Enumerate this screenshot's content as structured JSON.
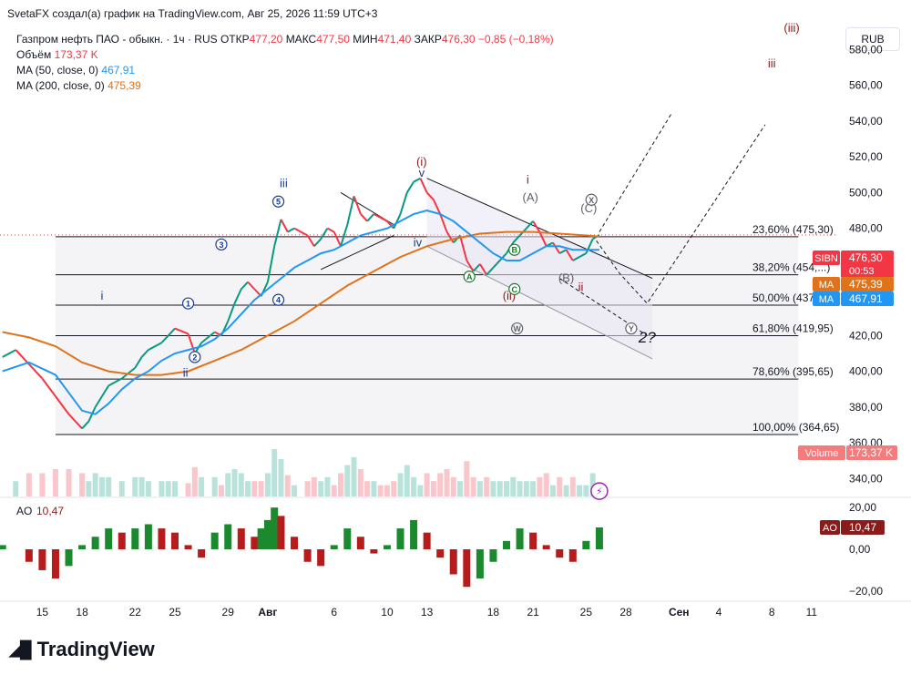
{
  "header": {
    "author_line": "SvetaFX создал(а) график на TradingView.com, Авг 25, 2026 11:59 UTC+3"
  },
  "legend": {
    "symbol_line": "Газпром нефть ПАО - обыкн. · 1ч · RUS",
    "ohlc": [
      {
        "label": "ОТКР",
        "value": "477,20"
      },
      {
        "label": "МАКС",
        "value": "477,50"
      },
      {
        "label": "МИН",
        "value": "471,40"
      },
      {
        "label": "ЗАКР",
        "value": "476,30"
      }
    ],
    "change": "−0,85 (−0,18%)",
    "volume_label": "Объём",
    "volume_value": "173,37 K",
    "ma50_label": "MA (50, close, 0)",
    "ma50_value": "467,91",
    "ma200_label": "MA (200, close, 0)",
    "ma200_value": "475,39"
  },
  "currency_button": "RUB",
  "colors": {
    "up": "#089981",
    "down": "#f23645",
    "ma50": "#2196f3",
    "ma200": "#e0731a",
    "fib": "#131722",
    "wave_dark": "#131722",
    "wave_navy": "#1a3c8f",
    "wave_maroon": "#8b1a1a",
    "wave_green": "#1b7a2c"
  },
  "chart_data": [
    {
      "type": "line",
      "title": "Газпром нефть ПАО - обыкн.",
      "symbol": "SIBN",
      "timeframe": "1ч",
      "exchange": "RUS",
      "currency": "RUB",
      "y_scale": {
        "min": 330,
        "max": 595,
        "ticks": [
          "580,00",
          "560,00",
          "540,00",
          "520,00",
          "500,00",
          "480,00",
          "460,00",
          "440,00",
          "420,00",
          "400,00",
          "380,00",
          "360,00",
          "340,00"
        ],
        "tick_values": [
          580,
          560,
          540,
          520,
          500,
          480,
          460,
          440,
          420,
          400,
          380,
          360,
          340
        ]
      },
      "x_scale": {
        "ticks": [
          "15",
          "18",
          "22",
          "25",
          "29",
          "Авг",
          "6",
          "10",
          "13",
          "18",
          "21",
          "25",
          "28",
          "Сен",
          "4",
          "8",
          "11"
        ],
        "tick_days": [
          -17,
          -14,
          -10,
          -7,
          -3,
          0,
          5,
          9,
          12,
          17,
          20,
          24,
          27,
          31,
          34,
          38,
          41
        ]
      },
      "series": [
        {
          "name": "price",
          "points": [
            [
              -20,
              408
            ],
            [
              -19,
              412
            ],
            [
              -18,
              404
            ],
            [
              -17,
              396
            ],
            [
              -16,
              386
            ],
            [
              -15,
              376
            ],
            [
              -14,
              368
            ],
            [
              -13.5,
              372
            ],
            [
              -13,
              380
            ],
            [
              -12.5,
              386
            ],
            [
              -12,
              392
            ],
            [
              -11,
              396
            ],
            [
              -10,
              402
            ],
            [
              -9.5,
              408
            ],
            [
              -9,
              412
            ],
            [
              -8,
              416
            ],
            [
              -7.5,
              420
            ],
            [
              -7,
              424
            ],
            [
              -6,
              421
            ],
            [
              -5.5,
              410
            ],
            [
              -5,
              416
            ],
            [
              -4,
              422
            ],
            [
              -3.5,
              420
            ],
            [
              -3,
              428
            ],
            [
              -2.5,
              438
            ],
            [
              -2,
              446
            ],
            [
              -1.5,
              450
            ],
            [
              -1,
              446
            ],
            [
              -0.5,
              442
            ],
            [
              0,
              450
            ],
            [
              0.5,
              470
            ],
            [
              1,
              485
            ],
            [
              1.5,
              478
            ],
            [
              2,
              480
            ],
            [
              3,
              476
            ],
            [
              3.5,
              470
            ],
            [
              4,
              474
            ],
            [
              4.5,
              480
            ],
            [
              5,
              478
            ],
            [
              5.5,
              470
            ],
            [
              6,
              482
            ],
            [
              6.5,
              498
            ],
            [
              7,
              488
            ],
            [
              7.5,
              484
            ],
            [
              8,
              488
            ],
            [
              8.5,
              486
            ],
            [
              9,
              484
            ],
            [
              9.5,
              480
            ],
            [
              10,
              488
            ],
            [
              10.5,
              500
            ],
            [
              11,
              506
            ],
            [
              11.5,
              508
            ],
            [
              12,
              500
            ],
            [
              12.5,
              496
            ],
            [
              13,
              488
            ],
            [
              13.5,
              478
            ],
            [
              14,
              472
            ],
            [
              14.5,
              476
            ],
            [
              15,
              462
            ],
            [
              15.5,
              456
            ],
            [
              16,
              460
            ],
            [
              16.5,
              454
            ],
            [
              17,
              458
            ],
            [
              17.5,
              462
            ],
            [
              18,
              466
            ],
            [
              18.5,
              472
            ],
            [
              19,
              476
            ],
            [
              19.5,
              480
            ],
            [
              20,
              484
            ],
            [
              20.5,
              478
            ],
            [
              21,
              470
            ],
            [
              21.5,
              472
            ],
            [
              22,
              466
            ],
            [
              22.5,
              468
            ],
            [
              23,
              462
            ],
            [
              23.5,
              464
            ],
            [
              24,
              466
            ],
            [
              24.5,
              474
            ],
            [
              25,
              476.3
            ]
          ]
        },
        {
          "name": "MA (50, close, 0)",
          "points": [
            [
              -20,
              400
            ],
            [
              -18,
              405
            ],
            [
              -16,
              398
            ],
            [
              -15,
              388
            ],
            [
              -14,
              378
            ],
            [
              -13,
              376
            ],
            [
              -12,
              382
            ],
            [
              -11,
              390
            ],
            [
              -10,
              396
            ],
            [
              -9,
              400
            ],
            [
              -8,
              406
            ],
            [
              -7,
              410
            ],
            [
              -6,
              412
            ],
            [
              -5,
              414
            ],
            [
              -4,
              418
            ],
            [
              -3,
              424
            ],
            [
              -2,
              432
            ],
            [
              -1,
              440
            ],
            [
              0,
              446
            ],
            [
              1,
              452
            ],
            [
              2,
              458
            ],
            [
              3,
              462
            ],
            [
              4,
              466
            ],
            [
              5,
              468
            ],
            [
              6,
              472
            ],
            [
              7,
              476
            ],
            [
              8,
              478
            ],
            [
              9,
              480
            ],
            [
              10,
              484
            ],
            [
              11,
              488
            ],
            [
              12,
              490
            ],
            [
              13,
              488
            ],
            [
              14,
              484
            ],
            [
              15,
              478
            ],
            [
              16,
              472
            ],
            [
              17,
              466
            ],
            [
              18,
              462
            ],
            [
              19,
              462
            ],
            [
              20,
              466
            ],
            [
              21,
              470
            ],
            [
              22,
              470
            ],
            [
              23,
              468
            ],
            [
              24,
              468
            ],
            [
              25,
              468
            ]
          ]
        },
        {
          "name": "MA (200, close, 0)",
          "points": [
            [
              -20,
              422
            ],
            [
              -18,
              419
            ],
            [
              -16,
              414
            ],
            [
              -14,
              405
            ],
            [
              -12,
              400
            ],
            [
              -10,
              398
            ],
            [
              -8,
              398
            ],
            [
              -6,
              400
            ],
            [
              -4,
              406
            ],
            [
              -2,
              412
            ],
            [
              0,
              420
            ],
            [
              2,
              428
            ],
            [
              4,
              438
            ],
            [
              6,
              448
            ],
            [
              8,
              456
            ],
            [
              10,
              464
            ],
            [
              12,
              470
            ],
            [
              14,
              474
            ],
            [
              16,
              477
            ],
            [
              18,
              478
            ],
            [
              20,
              478
            ],
            [
              22,
              477
            ],
            [
              24,
              476
            ],
            [
              25,
              475.4
            ]
          ]
        }
      ],
      "fibonacci": [
        {
          "label": "23,60% (475,30)",
          "price": 475.3
        },
        {
          "label": "38,20% (454,...)",
          "price": 454
        },
        {
          "label": "50,00% (437,05)",
          "price": 437.05
        },
        {
          "label": "61,80% (419,95)",
          "price": 419.95
        },
        {
          "label": "78,60% (395,65)",
          "price": 395.65
        },
        {
          "label": "100,00% (364,65)",
          "price": 364.65
        }
      ],
      "badges": [
        {
          "label": "SIBN",
          "value": "476,30",
          "sub": "00:53",
          "color": "#f23645"
        },
        {
          "label": "MA",
          "value": "475,39",
          "color": "#e0731a"
        },
        {
          "label": "MA",
          "value": "467,91",
          "color": "#2196f3"
        },
        {
          "label": "Volume",
          "value": "173,37 K",
          "color": "#f47c7c"
        }
      ],
      "wave_labels": [
        {
          "text": "(iii)",
          "day": 39.5,
          "price": 590,
          "color": "#8b1a1a"
        },
        {
          "text": "iii",
          "day": 38,
          "price": 570,
          "color": "#8b1a1a"
        },
        {
          "text": "(i)",
          "day": 11.6,
          "price": 515,
          "color": "#8b1a1a"
        },
        {
          "text": "v",
          "day": 11.6,
          "price": 509,
          "color": "#1a3c8f"
        },
        {
          "text": "iii",
          "day": 1.2,
          "price": 503,
          "color": "#1a3c8f"
        },
        {
          "text": "i",
          "day": -12.5,
          "price": 440,
          "color": "#1a3c8f"
        },
        {
          "text": "ii",
          "day": -6.2,
          "price": 397,
          "color": "#1a3c8f"
        },
        {
          "text": "iv",
          "day": 11.3,
          "price": 470,
          "color": "#1a3c8f"
        },
        {
          "text": "i",
          "day": 19.6,
          "price": 505,
          "color": "#8b1a1a"
        },
        {
          "text": "(ii)",
          "day": 18.2,
          "price": 440,
          "color": "#8b1a1a"
        },
        {
          "text": "ii",
          "day": 23.6,
          "price": 445,
          "color": "#8b1a1a"
        },
        {
          "text": "2?",
          "day": 28.6,
          "price": 416,
          "color": "#131722"
        },
        {
          "text": "(A)",
          "day": 19.8,
          "price": 495,
          "color": "#5d606b"
        },
        {
          "text": "(B)",
          "day": 22.5,
          "price": 450,
          "color": "#5d606b"
        },
        {
          "text": "(C)",
          "day": 24.2,
          "price": 489,
          "color": "#5d606b"
        }
      ],
      "circle_labels": [
        {
          "text": "5",
          "day": 0.8,
          "price": 495,
          "color": "#1a3c8f"
        },
        {
          "text": "3",
          "day": -3.5,
          "price": 471,
          "color": "#1a3c8f"
        },
        {
          "text": "1",
          "day": -6,
          "price": 438,
          "color": "#1a3c8f"
        },
        {
          "text": "4",
          "day": 0.8,
          "price": 440,
          "color": "#1a3c8f"
        },
        {
          "text": "2",
          "day": -5.5,
          "price": 408,
          "color": "#1a3c8f"
        },
        {
          "text": "A",
          "day": 15.2,
          "price": 453,
          "color": "#1b7a2c"
        },
        {
          "text": "B",
          "day": 18.6,
          "price": 468,
          "color": "#1b7a2c"
        },
        {
          "text": "C",
          "day": 18.6,
          "price": 446,
          "color": "#1b7a2c"
        },
        {
          "text": "W",
          "day": 18.8,
          "price": 424,
          "color": "#5d606b"
        },
        {
          "text": "X",
          "day": 24.4,
          "price": 496,
          "color": "#5d606b"
        },
        {
          "text": "Y",
          "day": 27.4,
          "price": 424,
          "color": "#5d606b"
        }
      ]
    },
    {
      "type": "bar",
      "title": "AO",
      "value_label": "10,47",
      "y_scale": {
        "ticks": [
          "20,00",
          "0,00",
          "−20,00"
        ],
        "tick_values": [
          20,
          0,
          -20
        ]
      },
      "series": [
        {
          "name": "AO",
          "points": [
            [
              -20,
              2
            ],
            [
              -18,
              -6
            ],
            [
              -17,
              -10
            ],
            [
              -16,
              -14
            ],
            [
              -15,
              -8
            ],
            [
              -14,
              2
            ],
            [
              -13,
              6
            ],
            [
              -12,
              10
            ],
            [
              -11,
              8
            ],
            [
              -10,
              10
            ],
            [
              -9,
              12
            ],
            [
              -8,
              10
            ],
            [
              -7,
              8
            ],
            [
              -6,
              2
            ],
            [
              -5,
              -4
            ],
            [
              -4,
              8
            ],
            [
              -3,
              12
            ],
            [
              -2,
              10
            ],
            [
              -1,
              6
            ],
            [
              -0.5,
              10
            ],
            [
              0,
              14
            ],
            [
              0.5,
              20
            ],
            [
              1,
              16
            ],
            [
              2,
              6
            ],
            [
              3,
              -6
            ],
            [
              4,
              -8
            ],
            [
              5,
              2
            ],
            [
              6,
              10
            ],
            [
              7,
              6
            ],
            [
              8,
              -2
            ],
            [
              9,
              2
            ],
            [
              10,
              10
            ],
            [
              11,
              14
            ],
            [
              12,
              8
            ],
            [
              13,
              -4
            ],
            [
              14,
              -12
            ],
            [
              15,
              -18
            ],
            [
              16,
              -14
            ],
            [
              17,
              -6
            ],
            [
              18,
              4
            ],
            [
              19,
              10
            ],
            [
              20,
              8
            ],
            [
              21,
              2
            ],
            [
              22,
              -4
            ],
            [
              23,
              -6
            ],
            [
              24,
              4
            ],
            [
              25,
              10.47
            ]
          ]
        }
      ]
    }
  ]
}
